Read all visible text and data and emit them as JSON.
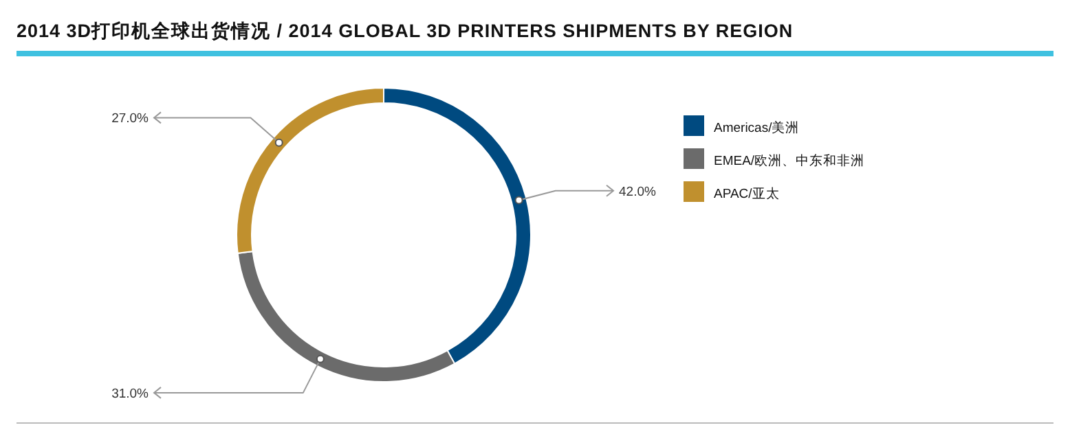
{
  "chart_data": {
    "type": "donut",
    "title": "2014 3D打印机全球出货情况 / 2014 GLOBAL 3D PRINTERS SHIPMENTS BY REGION",
    "categories": [
      "Americas/美洲",
      "EMEA/欧洲、中东和非洲",
      "APAC/亚太"
    ],
    "values": [
      42.0,
      31.0,
      27.0
    ],
    "colors": [
      "#004a80",
      "#6b6b6b",
      "#c0902e"
    ],
    "value_labels": [
      "42.0%",
      "31.0%",
      "27.0%"
    ],
    "legend": "right"
  }
}
